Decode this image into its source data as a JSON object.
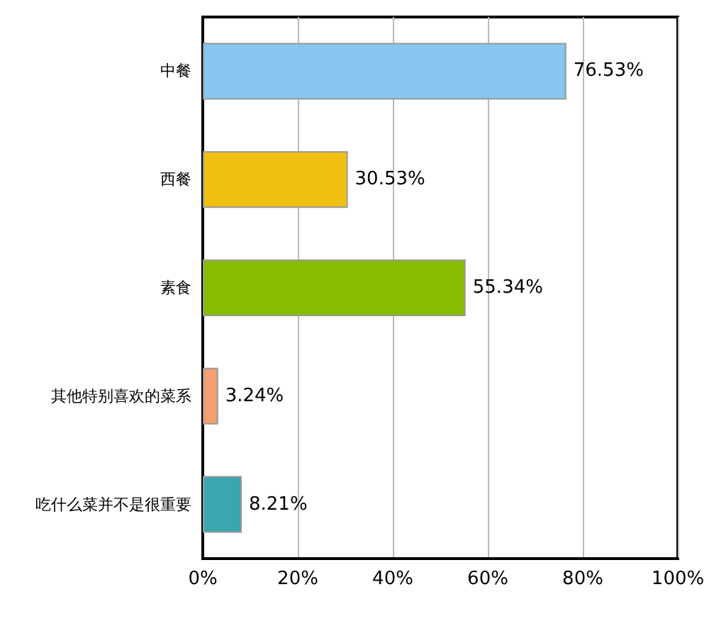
{
  "chart_data": {
    "type": "bar",
    "orientation": "horizontal",
    "categories": [
      "中餐",
      "西餐",
      "素食",
      "其他特别喜欢的菜系",
      "吃什么菜并不是很重要"
    ],
    "values": [
      76.53,
      30.53,
      55.34,
      3.24,
      8.21
    ],
    "colors": [
      "#86c6f0",
      "#f0c010",
      "#88bc00",
      "#f4a070",
      "#3aa6b0"
    ],
    "value_labels": [
      "76.53%",
      "30.53%",
      "55.34%",
      "3.24%",
      "8.21%"
    ],
    "xlim": [
      0,
      100
    ],
    "xticks": [
      {
        "value": 0,
        "label": "0%"
      },
      {
        "value": 20,
        "label": "20%"
      },
      {
        "value": 40,
        "label": "40%"
      },
      {
        "value": 60,
        "label": "60%"
      },
      {
        "value": 80,
        "label": "80%"
      },
      {
        "value": 100,
        "label": "100%"
      }
    ],
    "grid": "x"
  }
}
